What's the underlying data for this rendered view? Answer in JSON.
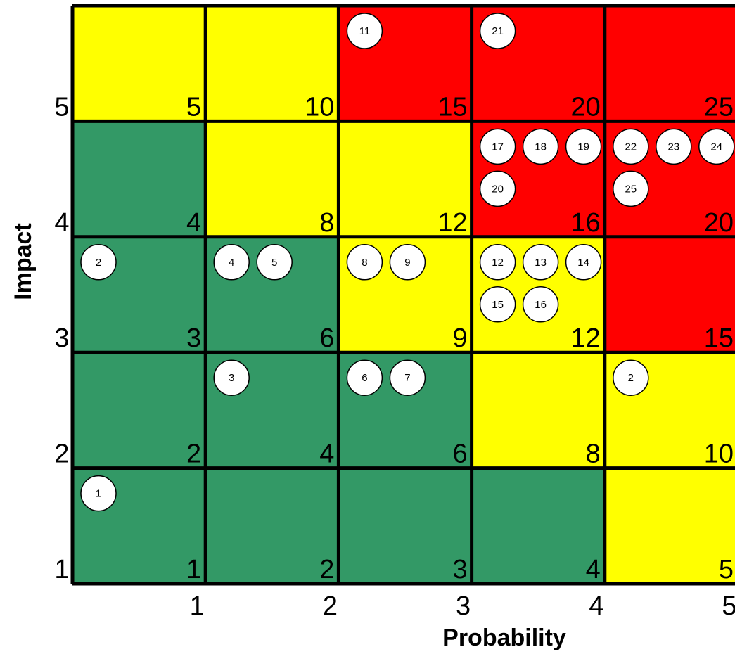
{
  "chart_data": {
    "type": "heatmap",
    "title": "",
    "xlabel": "Probability",
    "ylabel": "Impact",
    "x_ticks": [
      "1",
      "2",
      "3",
      "4",
      "5"
    ],
    "y_ticks": [
      "1",
      "2",
      "3",
      "4",
      "5"
    ],
    "colors": {
      "green": "#339966",
      "yellow": "#ffff00",
      "red": "#ff0000",
      "grid": "#000000",
      "marker_fill": "#ffffff"
    },
    "cells": [
      {
        "probability": 1,
        "impact": 5,
        "score": "5",
        "color": "yellow"
      },
      {
        "probability": 2,
        "impact": 5,
        "score": "10",
        "color": "yellow"
      },
      {
        "probability": 3,
        "impact": 5,
        "score": "15",
        "color": "red"
      },
      {
        "probability": 4,
        "impact": 5,
        "score": "20",
        "color": "red"
      },
      {
        "probability": 5,
        "impact": 5,
        "score": "25",
        "color": "red"
      },
      {
        "probability": 1,
        "impact": 4,
        "score": "4",
        "color": "green"
      },
      {
        "probability": 2,
        "impact": 4,
        "score": "8",
        "color": "yellow"
      },
      {
        "probability": 3,
        "impact": 4,
        "score": "12",
        "color": "yellow"
      },
      {
        "probability": 4,
        "impact": 4,
        "score": "16",
        "color": "red"
      },
      {
        "probability": 5,
        "impact": 4,
        "score": "20",
        "color": "red"
      },
      {
        "probability": 1,
        "impact": 3,
        "score": "3",
        "color": "green"
      },
      {
        "probability": 2,
        "impact": 3,
        "score": "6",
        "color": "green"
      },
      {
        "probability": 3,
        "impact": 3,
        "score": "9",
        "color": "yellow"
      },
      {
        "probability": 4,
        "impact": 3,
        "score": "12",
        "color": "yellow"
      },
      {
        "probability": 5,
        "impact": 3,
        "score": "15",
        "color": "red"
      },
      {
        "probability": 1,
        "impact": 2,
        "score": "2",
        "color": "green"
      },
      {
        "probability": 2,
        "impact": 2,
        "score": "4",
        "color": "green"
      },
      {
        "probability": 3,
        "impact": 2,
        "score": "6",
        "color": "green"
      },
      {
        "probability": 4,
        "impact": 2,
        "score": "8",
        "color": "yellow"
      },
      {
        "probability": 5,
        "impact": 2,
        "score": "10",
        "color": "yellow"
      },
      {
        "probability": 1,
        "impact": 1,
        "score": "1",
        "color": "green"
      },
      {
        "probability": 2,
        "impact": 1,
        "score": "2",
        "color": "green"
      },
      {
        "probability": 3,
        "impact": 1,
        "score": "3",
        "color": "green"
      },
      {
        "probability": 4,
        "impact": 1,
        "score": "4",
        "color": "green"
      },
      {
        "probability": 5,
        "impact": 1,
        "score": "5",
        "color": "yellow"
      }
    ],
    "markers": [
      {
        "label": "11",
        "probability": 3,
        "impact": 5
      },
      {
        "label": "21",
        "probability": 4,
        "impact": 5
      },
      {
        "label": "17",
        "probability": 4,
        "impact": 4
      },
      {
        "label": "18",
        "probability": 4,
        "impact": 4
      },
      {
        "label": "19",
        "probability": 4,
        "impact": 4
      },
      {
        "label": "20",
        "probability": 4,
        "impact": 4
      },
      {
        "label": "22",
        "probability": 5,
        "impact": 4
      },
      {
        "label": "23",
        "probability": 5,
        "impact": 4
      },
      {
        "label": "24",
        "probability": 5,
        "impact": 4
      },
      {
        "label": "25",
        "probability": 5,
        "impact": 4
      },
      {
        "label": "2",
        "probability": 1,
        "impact": 3
      },
      {
        "label": "4",
        "probability": 2,
        "impact": 3
      },
      {
        "label": "5",
        "probability": 2,
        "impact": 3
      },
      {
        "label": "8",
        "probability": 3,
        "impact": 3
      },
      {
        "label": "9",
        "probability": 3,
        "impact": 3
      },
      {
        "label": "12",
        "probability": 4,
        "impact": 3
      },
      {
        "label": "13",
        "probability": 4,
        "impact": 3
      },
      {
        "label": "14",
        "probability": 4,
        "impact": 3
      },
      {
        "label": "15",
        "probability": 4,
        "impact": 3
      },
      {
        "label": "16",
        "probability": 4,
        "impact": 3
      },
      {
        "label": "3",
        "probability": 2,
        "impact": 2
      },
      {
        "label": "6",
        "probability": 3,
        "impact": 2
      },
      {
        "label": "7",
        "probability": 3,
        "impact": 2
      },
      {
        "label": "2",
        "probability": 5,
        "impact": 2
      },
      {
        "label": "1",
        "probability": 1,
        "impact": 1
      }
    ]
  }
}
